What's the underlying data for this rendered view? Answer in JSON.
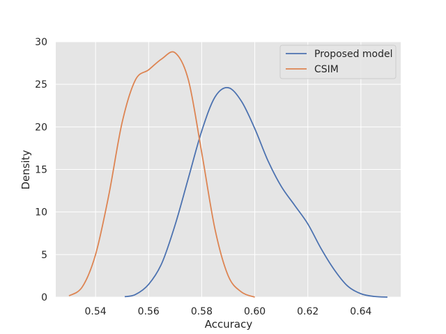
{
  "chart_data": {
    "type": "line",
    "title": "",
    "xlabel": "Accuracy",
    "ylabel": "Density",
    "xlim": [
      0.525,
      0.655
    ],
    "ylim": [
      0,
      30
    ],
    "xticks": [
      0.54,
      0.56,
      0.58,
      0.6,
      0.62,
      0.64
    ],
    "xtick_labels": [
      "0.54",
      "0.56",
      "0.58",
      "0.60",
      "0.62",
      "0.64"
    ],
    "yticks": [
      0,
      5,
      10,
      15,
      20,
      25,
      30
    ],
    "ytick_labels": [
      "0",
      "5",
      "10",
      "15",
      "20",
      "25",
      "30"
    ],
    "grid": true,
    "background": "#e5e5e5",
    "legend_position": "top-right",
    "series": [
      {
        "name": "Proposed model",
        "color": "#4c72b0",
        "x": [
          0.551,
          0.555,
          0.56,
          0.565,
          0.57,
          0.575,
          0.58,
          0.585,
          0.59,
          0.595,
          0.6,
          0.605,
          0.61,
          0.615,
          0.62,
          0.625,
          0.63,
          0.635,
          0.64,
          0.645,
          0.65
        ],
        "y": [
          0.05,
          0.3,
          1.5,
          4.0,
          8.5,
          14.0,
          19.5,
          23.5,
          24.6,
          23.0,
          19.8,
          16.0,
          13.0,
          10.8,
          8.6,
          5.7,
          3.2,
          1.3,
          0.4,
          0.08,
          0.0
        ]
      },
      {
        "name": "CSIM",
        "color": "#dd8452",
        "x": [
          0.53,
          0.535,
          0.54,
          0.545,
          0.55,
          0.555,
          0.56,
          0.565,
          0.57,
          0.575,
          0.58,
          0.585,
          0.59,
          0.595,
          0.6
        ],
        "y": [
          0.15,
          1.2,
          5.0,
          12.0,
          20.5,
          25.5,
          26.7,
          28.0,
          28.7,
          25.5,
          17.0,
          8.0,
          2.5,
          0.6,
          0.0
        ]
      }
    ]
  }
}
